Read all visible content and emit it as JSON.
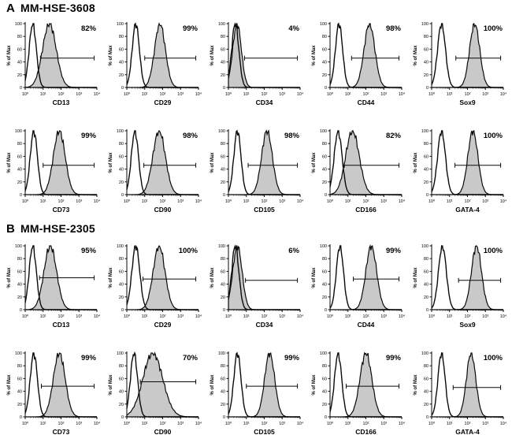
{
  "chart_data": {
    "type": "histogram",
    "description": "Flow cytometry overlay histograms. Open black curve = isotype control; gray shaded curve = stained marker; horizontal bracket = positive gate with percent positive shown top-right of each plot.",
    "y_axis": {
      "label": "% of Max",
      "ticks": [
        0,
        20,
        40,
        60,
        80,
        100
      ],
      "range": [
        0,
        100
      ]
    },
    "x_axis": {
      "scale": "log10",
      "tick_labels": [
        "10⁰",
        "10¹",
        "10²",
        "10³",
        "10⁴"
      ],
      "range_log10": [
        0,
        4
      ]
    },
    "style": {
      "positive_fill": "#c9c9c9",
      "line_color": "#0a0a0a",
      "background": "#ffffff"
    },
    "panels": [
      {
        "id": "A",
        "title": "MM-HSE-3608",
        "rows": [
          [
            {
              "marker": "CD13",
              "percent_positive": 82,
              "percent_label": "82%",
              "control_peak": {
                "mu": 0.42,
                "sigma": 0.2
              },
              "marker_peak": {
                "mu": 1.35,
                "sigma": 0.38
              },
              "gate": {
                "from_log10": 0.85,
                "to_log10": 3.85,
                "y_percent": 46
              }
            },
            {
              "marker": "CD29",
              "percent_positive": 99,
              "percent_label": "99%",
              "control_peak": {
                "mu": 0.5,
                "sigma": 0.2
              },
              "marker_peak": {
                "mu": 1.85,
                "sigma": 0.3
              },
              "gate": {
                "from_log10": 1.0,
                "to_log10": 3.85,
                "y_percent": 46
              }
            },
            {
              "marker": "CD34",
              "percent_positive": 4,
              "percent_label": "4%",
              "control_peak": {
                "mu": 0.38,
                "sigma": 0.2
              },
              "marker_peak": {
                "mu": 0.48,
                "sigma": 0.24
              },
              "gate": {
                "from_log10": 0.9,
                "to_log10": 3.85,
                "y_percent": 46
              }
            },
            {
              "marker": "CD44",
              "percent_positive": 98,
              "percent_label": "98%",
              "control_peak": {
                "mu": 0.5,
                "sigma": 0.2
              },
              "marker_peak": {
                "mu": 2.2,
                "sigma": 0.3
              },
              "gate": {
                "from_log10": 1.2,
                "to_log10": 3.85,
                "y_percent": 46
              }
            },
            {
              "marker": "Sox9",
              "percent_positive": 100,
              "percent_label": "100%",
              "control_peak": {
                "mu": 0.55,
                "sigma": 0.22
              },
              "marker_peak": {
                "mu": 2.4,
                "sigma": 0.28
              },
              "gate": {
                "from_log10": 1.35,
                "to_log10": 3.85,
                "y_percent": 46
              }
            }
          ],
          [
            {
              "marker": "CD73",
              "percent_positive": 99,
              "percent_label": "99%",
              "control_peak": {
                "mu": 0.48,
                "sigma": 0.2
              },
              "marker_peak": {
                "mu": 1.9,
                "sigma": 0.33
              },
              "gate": {
                "from_log10": 1.0,
                "to_log10": 3.85,
                "y_percent": 46
              }
            },
            {
              "marker": "CD90",
              "percent_positive": 98,
              "percent_label": "98%",
              "control_peak": {
                "mu": 0.45,
                "sigma": 0.2
              },
              "marker_peak": {
                "mu": 1.8,
                "sigma": 0.35
              },
              "gate": {
                "from_log10": 0.95,
                "to_log10": 3.85,
                "y_percent": 46
              }
            },
            {
              "marker": "CD105",
              "percent_positive": 98,
              "percent_label": "98%",
              "control_peak": {
                "mu": 0.5,
                "sigma": 0.2
              },
              "marker_peak": {
                "mu": 2.15,
                "sigma": 0.3
              },
              "gate": {
                "from_log10": 1.1,
                "to_log10": 3.85,
                "y_percent": 46
              }
            },
            {
              "marker": "CD166",
              "percent_positive": 82,
              "percent_label": "82%",
              "control_peak": {
                "mu": 0.45,
                "sigma": 0.22
              },
              "marker_peak": {
                "mu": 1.25,
                "sigma": 0.38
              },
              "gate": {
                "from_log10": 0.8,
                "to_log10": 3.85,
                "y_percent": 46
              }
            },
            {
              "marker": "GATA-4",
              "percent_positive": 100,
              "percent_label": "100%",
              "control_peak": {
                "mu": 0.55,
                "sigma": 0.22
              },
              "marker_peak": {
                "mu": 2.3,
                "sigma": 0.28
              },
              "gate": {
                "from_log10": 1.3,
                "to_log10": 3.85,
                "y_percent": 46
              }
            }
          ]
        ]
      },
      {
        "id": "B",
        "title": "MM-HSE-2305",
        "rows": [
          [
            {
              "marker": "CD13",
              "percent_positive": 95,
              "percent_label": "95%",
              "control_peak": {
                "mu": 0.42,
                "sigma": 0.2
              },
              "marker_peak": {
                "mu": 1.4,
                "sigma": 0.35
              },
              "gate": {
                "from_log10": 0.8,
                "to_log10": 3.85,
                "y_percent": 50
              }
            },
            {
              "marker": "CD29",
              "percent_positive": 100,
              "percent_label": "100%",
              "control_peak": {
                "mu": 0.5,
                "sigma": 0.22
              },
              "marker_peak": {
                "mu": 1.8,
                "sigma": 0.33
              },
              "gate": {
                "from_log10": 0.9,
                "to_log10": 3.85,
                "y_percent": 48
              }
            },
            {
              "marker": "CD34",
              "percent_positive": 6,
              "percent_label": "6%",
              "control_peak": {
                "mu": 0.38,
                "sigma": 0.2
              },
              "marker_peak": {
                "mu": 0.5,
                "sigma": 0.26
              },
              "gate": {
                "from_log10": 0.95,
                "to_log10": 3.85,
                "y_percent": 46
              }
            },
            {
              "marker": "CD44",
              "percent_positive": 99,
              "percent_label": "99%",
              "control_peak": {
                "mu": 0.55,
                "sigma": 0.2
              },
              "marker_peak": {
                "mu": 2.3,
                "sigma": 0.3
              },
              "gate": {
                "from_log10": 1.3,
                "to_log10": 3.85,
                "y_percent": 48
              }
            },
            {
              "marker": "Sox9",
              "percent_positive": 100,
              "percent_label": "100%",
              "control_peak": {
                "mu": 0.6,
                "sigma": 0.22
              },
              "marker_peak": {
                "mu": 2.5,
                "sigma": 0.28
              },
              "gate": {
                "from_log10": 1.5,
                "to_log10": 3.85,
                "y_percent": 46
              }
            }
          ],
          [
            {
              "marker": "CD73",
              "percent_positive": 99,
              "percent_label": "99%",
              "control_peak": {
                "mu": 0.48,
                "sigma": 0.2
              },
              "marker_peak": {
                "mu": 1.9,
                "sigma": 0.33
              },
              "gate": {
                "from_log10": 0.9,
                "to_log10": 3.85,
                "y_percent": 48
              }
            },
            {
              "marker": "CD90",
              "percent_positive": 70,
              "percent_label": "70%",
              "control_peak": {
                "mu": 0.4,
                "sigma": 0.2
              },
              "marker_peak": {
                "mu": 1.45,
                "sigma": 0.55
              },
              "gate": {
                "from_log10": 0.75,
                "to_log10": 3.85,
                "y_percent": 55
              }
            },
            {
              "marker": "CD105",
              "percent_positive": 99,
              "percent_label": "99%",
              "control_peak": {
                "mu": 0.5,
                "sigma": 0.2
              },
              "marker_peak": {
                "mu": 2.3,
                "sigma": 0.28
              },
              "gate": {
                "from_log10": 1.0,
                "to_log10": 3.85,
                "y_percent": 48
              }
            },
            {
              "marker": "CD166",
              "percent_positive": 99,
              "percent_label": "99%",
              "control_peak": {
                "mu": 0.45,
                "sigma": 0.2
              },
              "marker_peak": {
                "mu": 2.0,
                "sigma": 0.33
              },
              "gate": {
                "from_log10": 0.9,
                "to_log10": 3.85,
                "y_percent": 48
              }
            },
            {
              "marker": "GATA-4",
              "percent_positive": 100,
              "percent_label": "100%",
              "control_peak": {
                "mu": 0.55,
                "sigma": 0.2
              },
              "marker_peak": {
                "mu": 2.2,
                "sigma": 0.26
              },
              "gate": {
                "from_log10": 1.2,
                "to_log10": 3.85,
                "y_percent": 46
              }
            }
          ]
        ]
      }
    ]
  }
}
